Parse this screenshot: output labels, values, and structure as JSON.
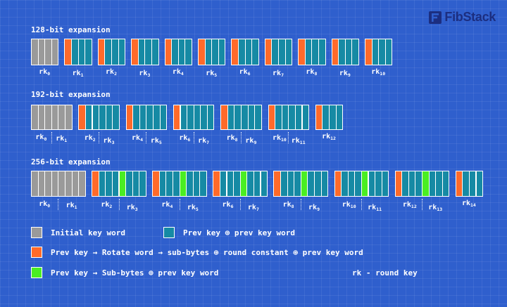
{
  "brand": {
    "name": "FibStack",
    "logo_icon": "fibstack-logo-icon",
    "color": "#1c2e80"
  },
  "colors": {
    "background": "#2f5fcd",
    "initial": "#9a9a9a",
    "prev_xor": "#168aa4",
    "rotate": "#ff6a2a",
    "subbytes": "#4aee22"
  },
  "sections": [
    {
      "title": "128-bit expansion",
      "label_prefix": "rk",
      "blocks": [
        {
          "pattern": [
            "initial",
            "initial",
            "initial",
            "initial"
          ],
          "labels": [
            "0"
          ]
        },
        {
          "pattern": [
            "rotate",
            "prev_xor",
            "prev_xor",
            "prev_xor"
          ],
          "labels": [
            "1"
          ]
        },
        {
          "pattern": [
            "rotate",
            "prev_xor",
            "prev_xor",
            "prev_xor"
          ],
          "labels": [
            "2"
          ]
        },
        {
          "pattern": [
            "rotate",
            "prev_xor",
            "prev_xor",
            "prev_xor"
          ],
          "labels": [
            "3"
          ]
        },
        {
          "pattern": [
            "rotate",
            "prev_xor",
            "prev_xor",
            "prev_xor"
          ],
          "labels": [
            "4"
          ]
        },
        {
          "pattern": [
            "rotate",
            "prev_xor",
            "prev_xor",
            "prev_xor"
          ],
          "labels": [
            "5"
          ]
        },
        {
          "pattern": [
            "rotate",
            "prev_xor",
            "prev_xor",
            "prev_xor"
          ],
          "labels": [
            "6"
          ]
        },
        {
          "pattern": [
            "rotate",
            "prev_xor",
            "prev_xor",
            "prev_xor"
          ],
          "labels": [
            "7"
          ]
        },
        {
          "pattern": [
            "rotate",
            "prev_xor",
            "prev_xor",
            "prev_xor"
          ],
          "labels": [
            "8"
          ]
        },
        {
          "pattern": [
            "rotate",
            "prev_xor",
            "prev_xor",
            "prev_xor"
          ],
          "labels": [
            "9"
          ]
        },
        {
          "pattern": [
            "rotate",
            "prev_xor",
            "prev_xor",
            "prev_xor"
          ],
          "labels": [
            "10"
          ]
        }
      ]
    },
    {
      "title": "192-bit expansion",
      "label_prefix": "rk",
      "blocks": [
        {
          "pattern": [
            "initial",
            "initial",
            "initial",
            "initial",
            "initial",
            "initial"
          ],
          "labels": [
            "0",
            "1"
          ]
        },
        {
          "pattern": [
            "rotate",
            "prev_xor",
            "prev_xor",
            "prev_xor",
            "prev_xor",
            "prev_xor"
          ],
          "labels": [
            "2",
            "3"
          ]
        },
        {
          "pattern": [
            "rotate",
            "prev_xor",
            "prev_xor",
            "prev_xor",
            "prev_xor",
            "prev_xor"
          ],
          "labels": [
            "4",
            "5"
          ]
        },
        {
          "pattern": [
            "rotate",
            "prev_xor",
            "prev_xor",
            "prev_xor",
            "prev_xor",
            "prev_xor"
          ],
          "labels": [
            "6",
            "7"
          ]
        },
        {
          "pattern": [
            "rotate",
            "prev_xor",
            "prev_xor",
            "prev_xor",
            "prev_xor",
            "prev_xor"
          ],
          "labels": [
            "8",
            "9"
          ]
        },
        {
          "pattern": [
            "rotate",
            "prev_xor",
            "prev_xor",
            "prev_xor",
            "prev_xor",
            "prev_xor"
          ],
          "labels": [
            "10",
            "11"
          ]
        },
        {
          "pattern": [
            "rotate",
            "prev_xor",
            "prev_xor",
            "prev_xor"
          ],
          "labels": [
            "12"
          ]
        }
      ]
    },
    {
      "title": "256-bit expansion",
      "label_prefix": "rk",
      "blocks": [
        {
          "pattern": [
            "initial",
            "initial",
            "initial",
            "initial",
            "initial",
            "initial",
            "initial",
            "initial"
          ],
          "labels": [
            "0",
            "1"
          ]
        },
        {
          "pattern": [
            "rotate",
            "prev_xor",
            "prev_xor",
            "prev_xor",
            "subbytes",
            "prev_xor",
            "prev_xor",
            "prev_xor"
          ],
          "labels": [
            "2",
            "3"
          ]
        },
        {
          "pattern": [
            "rotate",
            "prev_xor",
            "prev_xor",
            "prev_xor",
            "subbytes",
            "prev_xor",
            "prev_xor",
            "prev_xor"
          ],
          "labels": [
            "4",
            "5"
          ]
        },
        {
          "pattern": [
            "rotate",
            "prev_xor",
            "prev_xor",
            "prev_xor",
            "subbytes",
            "prev_xor",
            "prev_xor",
            "prev_xor"
          ],
          "labels": [
            "6",
            "7"
          ]
        },
        {
          "pattern": [
            "rotate",
            "prev_xor",
            "prev_xor",
            "prev_xor",
            "subbytes",
            "prev_xor",
            "prev_xor",
            "prev_xor"
          ],
          "labels": [
            "8",
            "9"
          ]
        },
        {
          "pattern": [
            "rotate",
            "prev_xor",
            "prev_xor",
            "prev_xor",
            "subbytes",
            "prev_xor",
            "prev_xor",
            "prev_xor"
          ],
          "labels": [
            "10",
            "11"
          ]
        },
        {
          "pattern": [
            "rotate",
            "prev_xor",
            "prev_xor",
            "prev_xor",
            "subbytes",
            "prev_xor",
            "prev_xor",
            "prev_xor"
          ],
          "labels": [
            "12",
            "13"
          ]
        },
        {
          "pattern": [
            "rotate",
            "prev_xor",
            "prev_xor",
            "prev_xor"
          ],
          "labels": [
            "14"
          ]
        }
      ]
    }
  ],
  "legend": {
    "initial": "Initial key word",
    "prev_xor": "Prev key ⊕ prev key word",
    "rotate": "Prev key → Rotate word → sub-bytes ⊕ round constant ⊕ prev key word",
    "subbytes": "Prev key → Sub-bytes ⊕ prev key word",
    "rk_note": "rk - round key"
  }
}
